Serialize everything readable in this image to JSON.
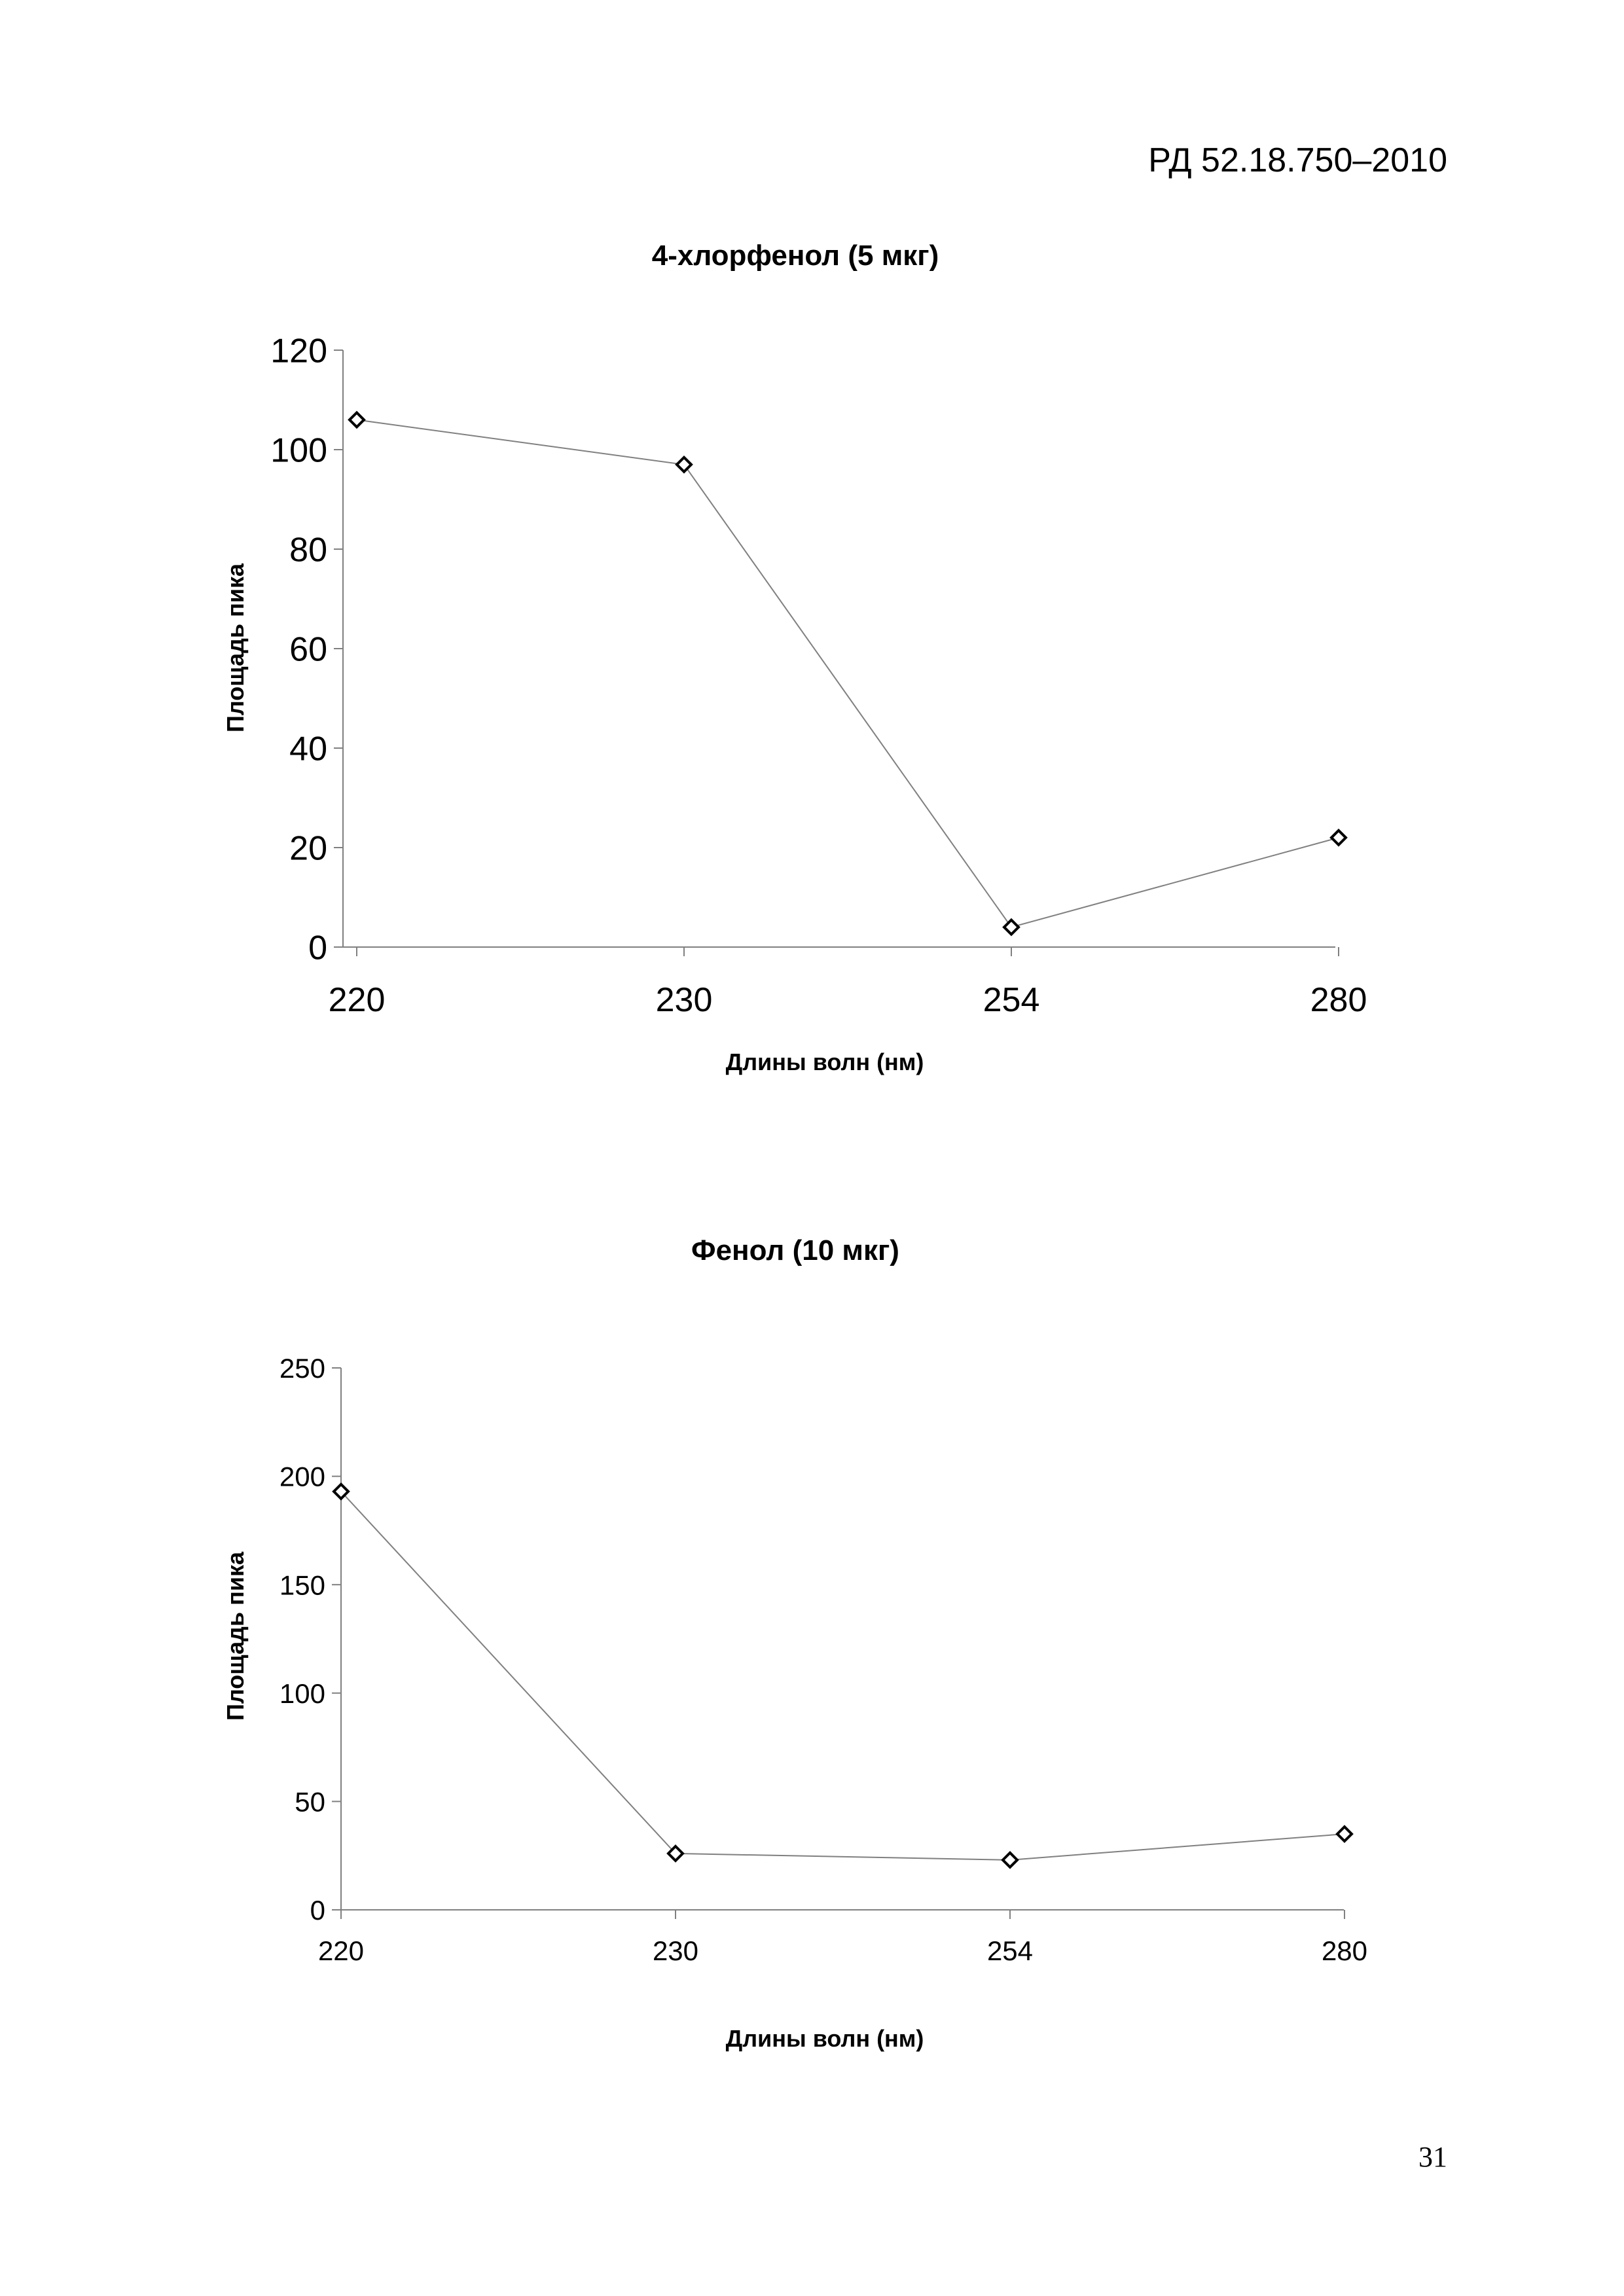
{
  "document": {
    "code": "РД 52.18.750–2010",
    "page_number": "31"
  },
  "chart_data": [
    {
      "type": "line",
      "title": "4-хлорфенол (5 мкг)",
      "xlabel": "Длины волн (нм)",
      "ylabel": "Площадь пика",
      "categories": [
        "220",
        "230",
        "254",
        "280"
      ],
      "values": [
        106,
        97,
        4,
        22
      ],
      "ylim": [
        0,
        120
      ],
      "yticks": [
        0,
        20,
        40,
        60,
        80,
        100,
        120
      ],
      "grid": false,
      "legend": "none",
      "marker": "diamond",
      "line_color": "#808080"
    },
    {
      "type": "line",
      "title": "Фенол (10 мкг)",
      "xlabel": "Длины волн (нм)",
      "ylabel": "Площадь пика",
      "categories": [
        "220",
        "230",
        "254",
        "280"
      ],
      "values": [
        193,
        26,
        23,
        35
      ],
      "ylim": [
        0,
        250
      ],
      "yticks": [
        0,
        50,
        100,
        150,
        200,
        250
      ],
      "grid": false,
      "legend": "none",
      "marker": "diamond",
      "line_color": "#808080"
    }
  ]
}
